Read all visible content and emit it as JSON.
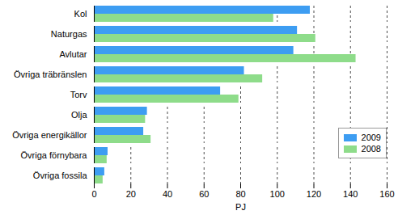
{
  "chart_data": {
    "type": "bar",
    "orientation": "horizontal",
    "categories": [
      "Kol",
      "Naturgas",
      "Avlutar",
      "Övriga träbränslen",
      "Torv",
      "Olja",
      "Övriga energikällor",
      "Övriga förnybara",
      "Övriga fossila"
    ],
    "series": [
      {
        "name": "2009",
        "color": "#3d9df2",
        "values": [
          118,
          111,
          109,
          82,
          69,
          29,
          27,
          7.5,
          5.7
        ]
      },
      {
        "name": "2008",
        "color": "#8edc8a",
        "values": [
          98,
          121,
          143,
          92,
          79,
          28,
          31,
          7,
          4.8
        ]
      }
    ],
    "x_label": "PJ",
    "xlim": [
      0,
      160
    ],
    "xticks": [
      0,
      20,
      40,
      60,
      80,
      100,
      120,
      140,
      160
    ],
    "grid": true,
    "legend": "right"
  }
}
